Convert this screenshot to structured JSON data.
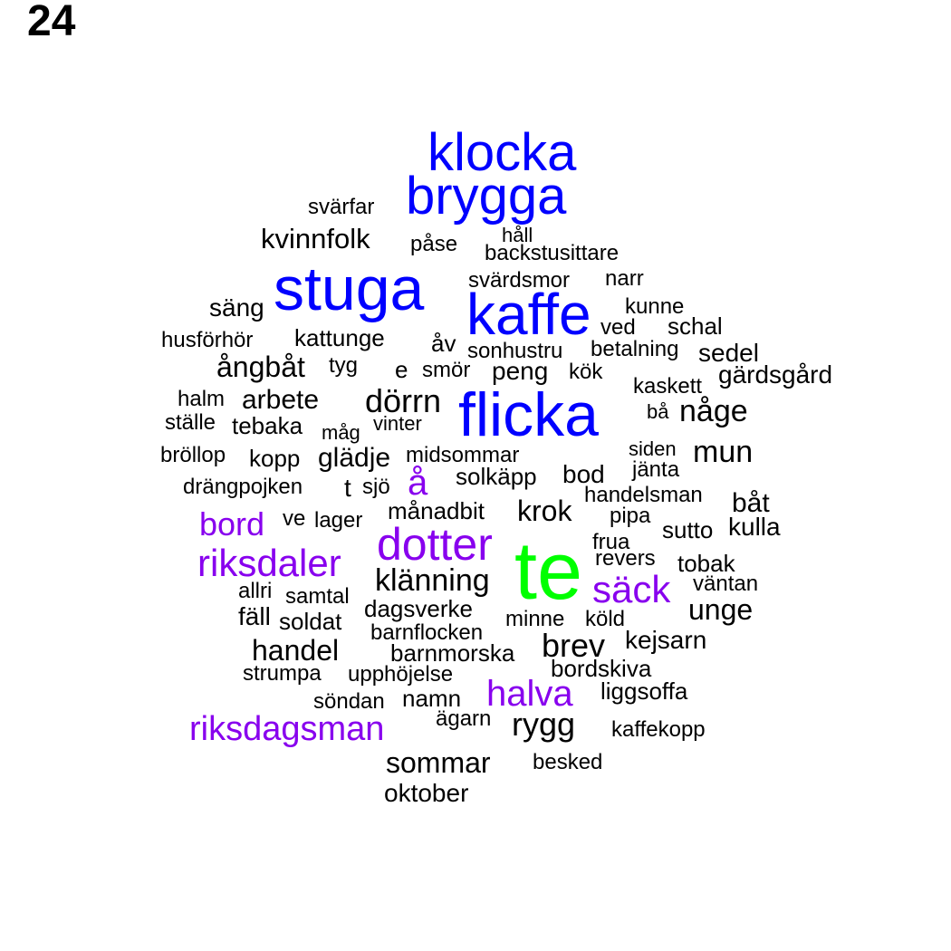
{
  "page_number": "24",
  "colors": {
    "large": "#0000ff",
    "medium": "#8800ee",
    "top": "#00ff00",
    "small": "#000000"
  },
  "words": [
    {
      "text": "klocka",
      "color": "#0000ff"
    },
    {
      "text": "brygga",
      "color": "#0000ff"
    },
    {
      "text": "svärfar",
      "color": "#000000"
    },
    {
      "text": "kvinnfolk",
      "color": "#000000"
    },
    {
      "text": "påse",
      "color": "#000000"
    },
    {
      "text": "håll",
      "color": "#000000"
    },
    {
      "text": "backstusittare",
      "color": "#000000"
    },
    {
      "text": "stuga",
      "color": "#0000ff"
    },
    {
      "text": "svärdsmor",
      "color": "#000000"
    },
    {
      "text": "narr",
      "color": "#000000"
    },
    {
      "text": "säng",
      "color": "#000000"
    },
    {
      "text": "kaffe",
      "color": "#0000ff"
    },
    {
      "text": "kunne",
      "color": "#000000"
    },
    {
      "text": "ved",
      "color": "#000000"
    },
    {
      "text": "schal",
      "color": "#000000"
    },
    {
      "text": "husförhör",
      "color": "#000000"
    },
    {
      "text": "kattunge",
      "color": "#000000"
    },
    {
      "text": "åv",
      "color": "#000000"
    },
    {
      "text": "sonhustru",
      "color": "#000000"
    },
    {
      "text": "betalning",
      "color": "#000000"
    },
    {
      "text": "sedel",
      "color": "#000000"
    },
    {
      "text": "ångbåt",
      "color": "#000000"
    },
    {
      "text": "tyg",
      "color": "#000000"
    },
    {
      "text": "e",
      "color": "#000000"
    },
    {
      "text": "smör",
      "color": "#000000"
    },
    {
      "text": "peng",
      "color": "#000000"
    },
    {
      "text": "kök",
      "color": "#000000"
    },
    {
      "text": "gärdsgård",
      "color": "#000000"
    },
    {
      "text": "kaskett",
      "color": "#000000"
    },
    {
      "text": "halm",
      "color": "#000000"
    },
    {
      "text": "arbete",
      "color": "#000000"
    },
    {
      "text": "dörrn",
      "color": "#000000"
    },
    {
      "text": "flicka",
      "color": "#0000ff"
    },
    {
      "text": "bå",
      "color": "#000000"
    },
    {
      "text": "någe",
      "color": "#000000"
    },
    {
      "text": "ställe",
      "color": "#000000"
    },
    {
      "text": "tebaka",
      "color": "#000000"
    },
    {
      "text": "måg",
      "color": "#000000"
    },
    {
      "text": "vinter",
      "color": "#000000"
    },
    {
      "text": "siden",
      "color": "#000000"
    },
    {
      "text": "mun",
      "color": "#000000"
    },
    {
      "text": "bröllop",
      "color": "#000000"
    },
    {
      "text": "kopp",
      "color": "#000000"
    },
    {
      "text": "glädje",
      "color": "#000000"
    },
    {
      "text": "midsommar",
      "color": "#000000"
    },
    {
      "text": "jänta",
      "color": "#000000"
    },
    {
      "text": "solkäpp",
      "color": "#000000"
    },
    {
      "text": "bod",
      "color": "#000000"
    },
    {
      "text": "å",
      "color": "#8800ee"
    },
    {
      "text": "drängpojken",
      "color": "#000000"
    },
    {
      "text": "t",
      "color": "#000000"
    },
    {
      "text": "sjö",
      "color": "#000000"
    },
    {
      "text": "handelsman",
      "color": "#000000"
    },
    {
      "text": "båt",
      "color": "#000000"
    },
    {
      "text": "månadbit",
      "color": "#000000"
    },
    {
      "text": "krok",
      "color": "#000000"
    },
    {
      "text": "bord",
      "color": "#8800ee"
    },
    {
      "text": "ve",
      "color": "#000000"
    },
    {
      "text": "lager",
      "color": "#000000"
    },
    {
      "text": "pipa",
      "color": "#000000"
    },
    {
      "text": "sutto",
      "color": "#000000"
    },
    {
      "text": "kulla",
      "color": "#000000"
    },
    {
      "text": "dotter",
      "color": "#8800ee"
    },
    {
      "text": "frua",
      "color": "#000000"
    },
    {
      "text": "riksdaler",
      "color": "#8800ee"
    },
    {
      "text": "te",
      "color": "#00ff00"
    },
    {
      "text": "revers",
      "color": "#000000"
    },
    {
      "text": "tobak",
      "color": "#000000"
    },
    {
      "text": "klänning",
      "color": "#000000"
    },
    {
      "text": "säck",
      "color": "#8800ee"
    },
    {
      "text": "väntan",
      "color": "#000000"
    },
    {
      "text": "allri",
      "color": "#000000"
    },
    {
      "text": "samtal",
      "color": "#000000"
    },
    {
      "text": "unge",
      "color": "#000000"
    },
    {
      "text": "dagsverke",
      "color": "#000000"
    },
    {
      "text": "fäll",
      "color": "#000000"
    },
    {
      "text": "soldat",
      "color": "#000000"
    },
    {
      "text": "minne",
      "color": "#000000"
    },
    {
      "text": "köld",
      "color": "#000000"
    },
    {
      "text": "barnflocken",
      "color": "#000000"
    },
    {
      "text": "brev",
      "color": "#000000"
    },
    {
      "text": "kejsarn",
      "color": "#000000"
    },
    {
      "text": "handel",
      "color": "#000000"
    },
    {
      "text": "barnmorska",
      "color": "#000000"
    },
    {
      "text": "bordskiva",
      "color": "#000000"
    },
    {
      "text": "strumpa",
      "color": "#000000"
    },
    {
      "text": "upphöjelse",
      "color": "#000000"
    },
    {
      "text": "halva",
      "color": "#8800ee"
    },
    {
      "text": "liggsoffa",
      "color": "#000000"
    },
    {
      "text": "söndan",
      "color": "#000000"
    },
    {
      "text": "namn",
      "color": "#000000"
    },
    {
      "text": "riksdagsman",
      "color": "#8800ee"
    },
    {
      "text": "ägarn",
      "color": "#000000"
    },
    {
      "text": "rygg",
      "color": "#000000"
    },
    {
      "text": "kaffekopp",
      "color": "#000000"
    },
    {
      "text": "sommar",
      "color": "#000000"
    },
    {
      "text": "besked",
      "color": "#000000"
    },
    {
      "text": "oktober",
      "color": "#000000"
    }
  ]
}
